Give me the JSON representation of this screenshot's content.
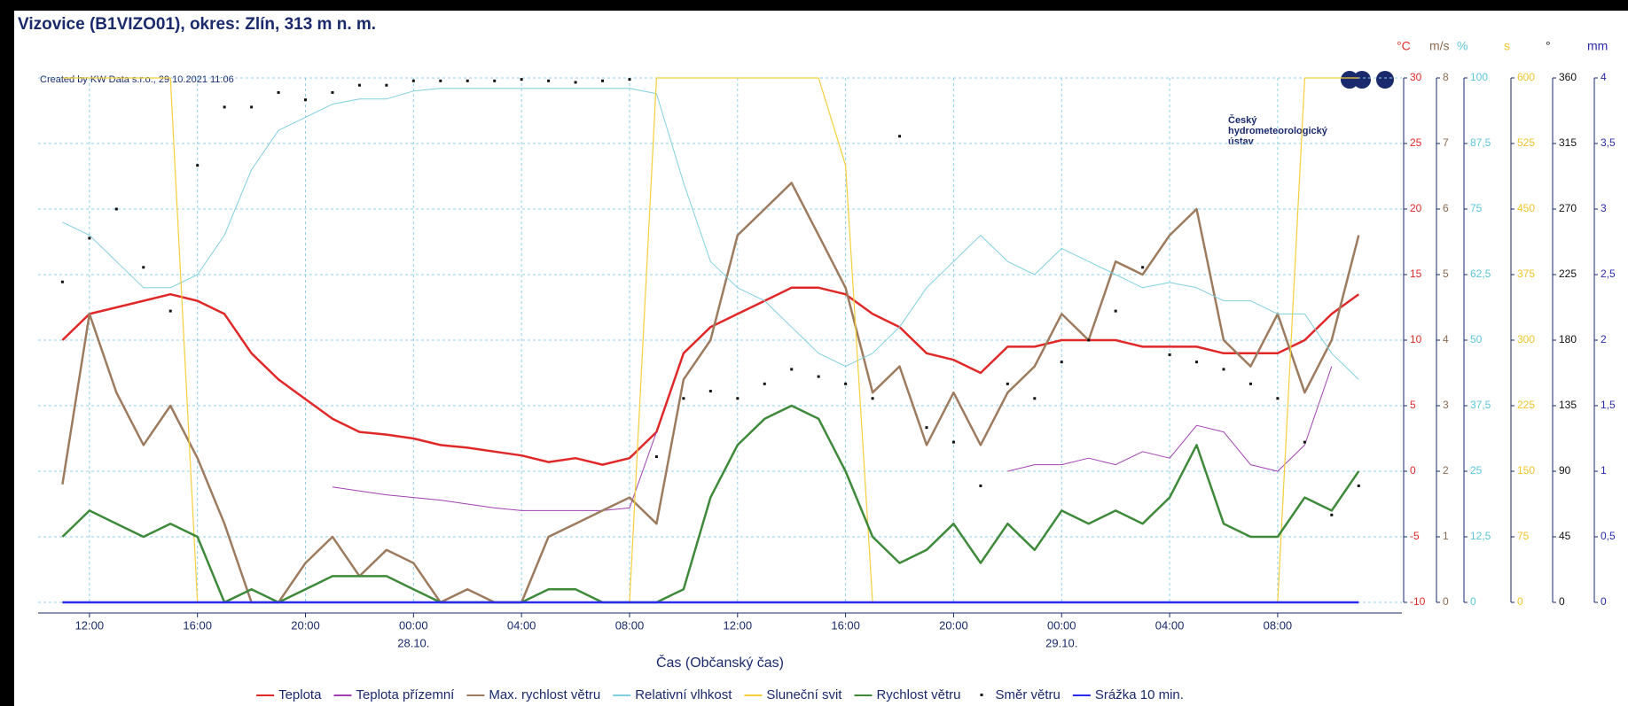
{
  "chart_data": {
    "type": "line",
    "title": "Vizovice (B1VIZO01), okres: Zlín, 313 m n. m.",
    "created": "Created by KW Data s.r.o., 29.10.2021 11:06",
    "logo": [
      "Český",
      "hydrometeorologický",
      "ústav"
    ],
    "xlabel": "Čas (Občanský čas)",
    "grid": true,
    "legend": "bottom",
    "xlim": [
      "2021-10-27 10:06",
      "2021-10-29 12:36"
    ],
    "xticks": [
      {
        "value": "2021-10-27 12:00",
        "label": "12:00"
      },
      {
        "value": "2021-10-27 16:00",
        "label": "16:00"
      },
      {
        "value": "2021-10-27 20:00",
        "label": "20:00"
      },
      {
        "value": "2021-10-28 00:00",
        "label": "00:00"
      },
      {
        "value": "2021-10-28 04:00",
        "label": "04:00"
      },
      {
        "value": "2021-10-28 08:00",
        "label": "08:00"
      },
      {
        "value": "2021-10-28 12:00",
        "label": "12:00"
      },
      {
        "value": "2021-10-28 16:00",
        "label": "16:00"
      },
      {
        "value": "2021-10-28 20:00",
        "label": "20:00"
      },
      {
        "value": "2021-10-29 00:00",
        "label": "00:00"
      },
      {
        "value": "2021-10-29 04:00",
        "label": "04:00"
      },
      {
        "value": "2021-10-29 08:00",
        "label": "08:00"
      }
    ],
    "xdate_labels": [
      {
        "value": "2021-10-28 00:00",
        "label": "28.10."
      },
      {
        "value": "2021-10-29 00:00",
        "label": "29.10."
      }
    ],
    "axes": [
      {
        "unit": "°C",
        "color": "#e02828",
        "lim": [
          -10,
          30
        ],
        "ticks": [
          -10,
          -5,
          0,
          5,
          10,
          15,
          20,
          25,
          30
        ]
      },
      {
        "unit": "m/s",
        "color": "#8a6a50",
        "lim": [
          0,
          8
        ],
        "ticks": [
          0,
          1,
          2,
          3,
          4,
          5,
          6,
          7,
          8
        ]
      },
      {
        "unit": "%",
        "color": "#5cc6d8",
        "lim": [
          0,
          100
        ],
        "ticks": [
          0,
          {
            "value": 12.5,
            "label": "12,5"
          },
          25,
          {
            "value": 37.5,
            "label": "37,5"
          },
          50,
          {
            "value": 62.5,
            "label": "62,5"
          },
          75,
          {
            "value": 87.5,
            "label": "87,5"
          },
          100
        ]
      },
      {
        "unit": "s",
        "color": "#f2c52a",
        "lim": [
          0,
          600
        ],
        "ticks": [
          0,
          75,
          150,
          225,
          300,
          375,
          450,
          525,
          600
        ]
      },
      {
        "unit": "°",
        "color": "#111111",
        "lim": [
          0,
          360
        ],
        "ticks": [
          0,
          45,
          90,
          135,
          180,
          225,
          270,
          315,
          360
        ]
      },
      {
        "unit": "mm",
        "color": "#2a2ab0",
        "lim": [
          0,
          4
        ],
        "ticks": [
          0,
          {
            "value": 0.5,
            "label": "0,5"
          },
          1,
          {
            "value": 1.5,
            "label": "1,5"
          },
          2,
          {
            "value": 2.5,
            "label": "2,5"
          },
          3,
          {
            "value": 3.5,
            "label": "3,5"
          },
          4
        ]
      }
    ],
    "x": [
      "2021-10-27 11:00",
      "2021-10-27 12:00",
      "2021-10-27 13:00",
      "2021-10-27 14:00",
      "2021-10-27 15:00",
      "2021-10-27 16:00",
      "2021-10-27 17:00",
      "2021-10-27 18:00",
      "2021-10-27 19:00",
      "2021-10-27 20:00",
      "2021-10-27 21:00",
      "2021-10-27 22:00",
      "2021-10-27 23:00",
      "2021-10-28 00:00",
      "2021-10-28 01:00",
      "2021-10-28 02:00",
      "2021-10-28 03:00",
      "2021-10-28 04:00",
      "2021-10-28 05:00",
      "2021-10-28 06:00",
      "2021-10-28 07:00",
      "2021-10-28 08:00",
      "2021-10-28 09:00",
      "2021-10-28 10:00",
      "2021-10-28 11:00",
      "2021-10-28 12:00",
      "2021-10-28 13:00",
      "2021-10-28 14:00",
      "2021-10-28 15:00",
      "2021-10-28 16:00",
      "2021-10-28 17:00",
      "2021-10-28 18:00",
      "2021-10-28 19:00",
      "2021-10-28 20:00",
      "2021-10-28 21:00",
      "2021-10-28 22:00",
      "2021-10-28 23:00",
      "2021-10-29 00:00",
      "2021-10-29 01:00",
      "2021-10-29 02:00",
      "2021-10-29 03:00",
      "2021-10-29 04:00",
      "2021-10-29 05:00",
      "2021-10-29 06:00",
      "2021-10-29 07:00",
      "2021-10-29 08:00",
      "2021-10-29 09:00",
      "2021-10-29 10:00",
      "2021-10-29 11:00"
    ],
    "series": [
      {
        "name": "Teplota",
        "color": "#e02828",
        "axis": 0,
        "width": 2.5,
        "values": [
          10,
          12,
          12.5,
          13,
          13.5,
          13,
          12,
          9,
          7,
          5.5,
          4,
          3,
          2.8,
          2.5,
          2,
          1.8,
          1.5,
          1.2,
          0.7,
          1,
          0.5,
          1,
          3,
          9,
          11,
          12,
          13,
          14,
          14,
          13.5,
          12,
          11,
          9,
          8.5,
          7.5,
          9.5,
          9.5,
          10,
          10,
          10,
          9.5,
          9.5,
          9.5,
          9,
          9,
          9,
          10,
          12,
          13.5
        ]
      },
      {
        "name": "Teplota přízemní",
        "color": "#a040b0",
        "axis": 0,
        "width": 1,
        "values": [
          null,
          null,
          null,
          null,
          null,
          null,
          null,
          null,
          null,
          null,
          -1.2,
          -1.5,
          -1.8,
          -2,
          -2.2,
          -2.5,
          -2.8,
          -3,
          -3,
          -3,
          -3,
          -2.8,
          3,
          null,
          null,
          null,
          null,
          null,
          null,
          null,
          null,
          null,
          null,
          null,
          null,
          0,
          0.5,
          0.5,
          1,
          0.5,
          1.5,
          1,
          3.5,
          3,
          0.5,
          0,
          2,
          8,
          null
        ]
      },
      {
        "name": "Max. rychlost větru",
        "color": "#9c7b5e",
        "axis": 1,
        "width": 2.5,
        "values": [
          1.8,
          4.4,
          3.2,
          2.4,
          3,
          2.2,
          1.2,
          0,
          0,
          0.6,
          1,
          0.4,
          0.8,
          0.6,
          0,
          0.2,
          0,
          0,
          1,
          1.2,
          1.4,
          1.6,
          1.2,
          3.4,
          4,
          5.6,
          6,
          6.4,
          5.6,
          4.8,
          3.2,
          3.6,
          2.4,
          3.2,
          2.4,
          3.2,
          3.6,
          4.4,
          4,
          5.2,
          5,
          5.6,
          6,
          4,
          3.6,
          4.4,
          3.2,
          4,
          5.6
        ]
      },
      {
        "name": "Relativní vlhkost",
        "color": "#7fd0de",
        "axis": 2,
        "width": 1,
        "values": [
          72.5,
          70,
          65,
          60,
          60,
          62.5,
          70,
          82.5,
          90,
          92.5,
          95,
          96,
          96,
          97.5,
          98,
          98,
          98,
          98,
          98,
          98,
          98,
          98,
          97,
          80,
          65,
          60,
          57.5,
          52.5,
          47.5,
          45,
          47.5,
          52.5,
          60,
          65,
          70,
          65,
          62.5,
          67.5,
          65,
          62.5,
          60,
          61,
          60,
          57.5,
          57.5,
          55,
          55,
          47.5,
          42.5
        ]
      },
      {
        "name": "Sluneční svit",
        "color": "#f5cf3a",
        "axis": 3,
        "width": 1.2,
        "values": [
          600,
          600,
          600,
          600,
          600,
          0,
          0,
          0,
          0,
          0,
          0,
          0,
          0,
          0,
          0,
          0,
          0,
          0,
          0,
          0,
          0,
          0,
          600,
          600,
          600,
          600,
          600,
          600,
          600,
          500,
          0,
          0,
          0,
          0,
          0,
          0,
          0,
          0,
          0,
          0,
          0,
          0,
          0,
          0,
          0,
          0,
          600,
          600,
          600
        ]
      },
      {
        "name": "Rychlost větru",
        "color": "#3f8a3a",
        "axis": 1,
        "width": 2.5,
        "values": [
          1,
          1.4,
          1.2,
          1,
          1.2,
          1,
          0,
          0.2,
          0,
          0.2,
          0.4,
          0.4,
          0.4,
          0.2,
          0,
          0,
          0,
          0,
          0.2,
          0.2,
          0,
          0,
          0,
          0.2,
          1.6,
          2.4,
          2.8,
          3,
          2.8,
          2,
          1,
          0.6,
          0.8,
          1.2,
          0.6,
          1.2,
          0.8,
          1.4,
          1.2,
          1.4,
          1.2,
          1.6,
          2.4,
          1.2,
          1,
          1,
          1.6,
          1.4,
          2
        ]
      },
      {
        "name": "Směr větru",
        "color": "#111111",
        "axis": 4,
        "mark": "dot",
        "values": [
          220,
          250,
          270,
          230,
          200,
          300,
          340,
          340,
          350,
          345,
          350,
          355,
          355,
          358,
          358,
          358,
          358,
          359,
          358,
          357,
          358,
          359,
          100,
          140,
          145,
          140,
          150,
          160,
          155,
          150,
          140,
          320,
          120,
          110,
          80,
          150,
          140,
          165,
          180,
          200,
          230,
          170,
          165,
          160,
          150,
          140,
          110,
          60,
          80
        ]
      },
      {
        "name": "Srážka 10 min.",
        "color": "#2b2bf0",
        "axis": 5,
        "width": 2.5,
        "values": [
          0,
          0,
          0,
          0,
          0,
          0,
          0,
          0,
          0,
          0,
          0,
          0,
          0,
          0,
          0,
          0,
          0,
          0,
          0,
          0,
          0,
          0,
          0,
          0,
          0,
          0,
          0,
          0,
          0,
          0,
          0,
          0,
          0,
          0,
          0,
          0,
          0,
          0,
          0,
          0,
          0,
          0,
          0,
          0,
          0,
          0,
          0,
          0,
          0
        ]
      }
    ]
  }
}
